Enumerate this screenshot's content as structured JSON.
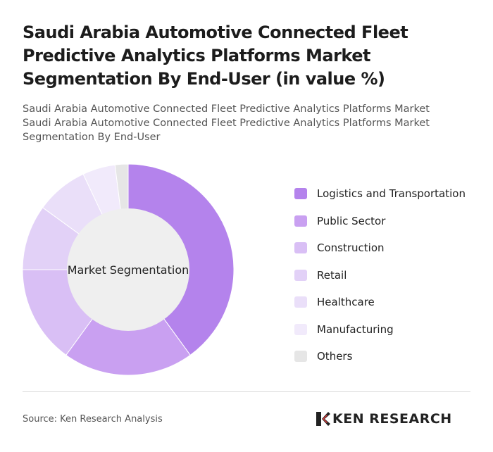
{
  "title": "Saudi Arabia Automotive Connected Fleet Predictive Analytics Platforms Market Segmentation By End-User (in value %)",
  "subtitle_lines": [
    "Saudi Arabia Automotive Connected Fleet Predictive Analytics Platforms Market",
    "Saudi Arabia Automotive Connected Fleet Predictive Analytics Platforms Market",
    "Segmentation By End-User"
  ],
  "chart_data": {
    "type": "pie",
    "variant": "donut",
    "center_label": "Market Segmentation",
    "categories": [
      "Logistics and Transportation",
      "Public Sector",
      "Construction",
      "Retail",
      "Healthcare",
      "Manufacturing",
      "Others"
    ],
    "values": [
      40,
      20,
      15,
      10,
      8,
      5,
      2
    ],
    "colors": [
      "#b483ec",
      "#c9a0f1",
      "#d9bff5",
      "#e2d1f7",
      "#eadff9",
      "#f1eafb",
      "#e6e6e6"
    ],
    "legend_position": "right"
  },
  "footer": {
    "source": "Source: Ken Research Analysis",
    "brand": "KEN RESEARCH"
  }
}
